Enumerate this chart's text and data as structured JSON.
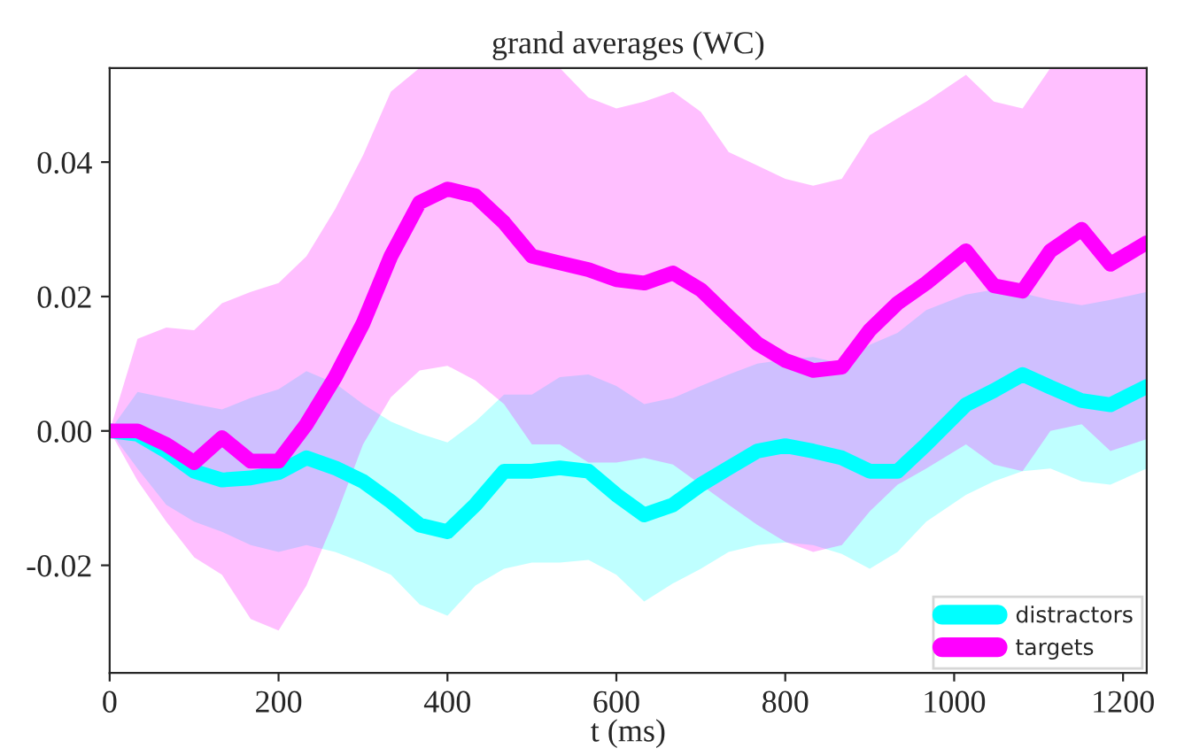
{
  "chart_data": {
    "type": "line",
    "title": "grand averages (WC)",
    "xlabel": "t (ms)",
    "x": [
      0,
      33,
      67,
      100,
      133,
      167,
      200,
      233,
      267,
      300,
      333,
      367,
      400,
      433,
      467,
      500,
      533,
      567,
      600,
      633,
      667,
      700,
      733,
      767,
      800,
      833,
      867,
      900,
      933,
      967,
      1014,
      1047,
      1081,
      1114,
      1151,
      1185,
      1228
    ],
    "series": [
      {
        "name": "distractors",
        "color": "#00ffff",
        "values": [
          0,
          -0.0005,
          -0.003,
          -0.006,
          -0.0073,
          -0.007,
          -0.0062,
          -0.004,
          -0.0055,
          -0.0075,
          -0.0105,
          -0.014,
          -0.015,
          -0.011,
          -0.006,
          -0.006,
          -0.0055,
          -0.006,
          -0.0095,
          -0.0125,
          -0.011,
          -0.008,
          -0.0055,
          -0.003,
          -0.0022,
          -0.003,
          -0.004,
          -0.006,
          -0.006,
          -0.002,
          0.0039,
          0.006,
          0.0084,
          0.0065,
          0.0045,
          0.0039,
          0.0066
        ],
        "lower": [
          0,
          -0.0056,
          -0.011,
          -0.0135,
          -0.015,
          -0.017,
          -0.018,
          -0.017,
          -0.018,
          -0.0196,
          -0.0214,
          -0.0258,
          -0.0275,
          -0.023,
          -0.0205,
          -0.0196,
          -0.0196,
          -0.0192,
          -0.0214,
          -0.0254,
          -0.0227,
          -0.0205,
          -0.018,
          -0.017,
          -0.0166,
          -0.017,
          -0.0183,
          -0.0205,
          -0.018,
          -0.0135,
          -0.0095,
          -0.0075,
          -0.006,
          -0.0056,
          -0.0075,
          -0.008,
          -0.0056
        ],
        "upper": [
          0,
          0.0058,
          0.0049,
          0.004,
          0.0032,
          0.0049,
          0.0062,
          0.0089,
          0.0071,
          0.004,
          0.0014,
          -0.0004,
          -0.0017,
          0.0014,
          0.0054,
          0.0054,
          0.008,
          0.0084,
          0.0067,
          0.004,
          0.0049,
          0.0067,
          0.0084,
          0.01,
          0.0106,
          0.011,
          0.01,
          0.0128,
          0.0146,
          0.018,
          0.0203,
          0.021,
          0.0205,
          0.0195,
          0.0187,
          0.0195,
          0.0207
        ]
      },
      {
        "name": "targets",
        "color": "#ff00ff",
        "values": [
          0,
          0,
          -0.002,
          -0.0047,
          -0.001,
          -0.0045,
          -0.0045,
          0.001,
          0.008,
          0.016,
          0.026,
          0.034,
          0.036,
          0.035,
          0.031,
          0.026,
          0.025,
          0.024,
          0.0225,
          0.022,
          0.0235,
          0.021,
          0.017,
          0.013,
          0.0105,
          0.009,
          0.0095,
          0.015,
          0.019,
          0.022,
          0.0268,
          0.0216,
          0.0208,
          0.0268,
          0.03,
          0.0248,
          0.028
        ],
        "lower": [
          0,
          -0.0074,
          -0.0135,
          -0.0188,
          -0.0214,
          -0.028,
          -0.0297,
          -0.023,
          -0.013,
          -0.002,
          0.005,
          0.009,
          0.0097,
          0.0075,
          0.004,
          -0.002,
          -0.002,
          -0.0047,
          -0.0047,
          -0.004,
          -0.005,
          -0.008,
          -0.011,
          -0.014,
          -0.0165,
          -0.018,
          -0.017,
          -0.012,
          -0.008,
          -0.0056,
          -0.002,
          -0.005,
          -0.006,
          0,
          0.001,
          -0.003,
          -0.0012
        ],
        "upper": [
          0,
          0.0137,
          0.0154,
          0.015,
          0.019,
          0.0207,
          0.022,
          0.026,
          0.033,
          0.041,
          0.0505,
          0.054,
          0.054,
          0.054,
          0.054,
          0.054,
          0.054,
          0.0496,
          0.048,
          0.049,
          0.0505,
          0.0475,
          0.0415,
          0.0395,
          0.0375,
          0.0365,
          0.0375,
          0.044,
          0.0465,
          0.049,
          0.053,
          0.049,
          0.048,
          0.054,
          0.054,
          0.054,
          0.054
        ]
      }
    ],
    "xlim": [
      0,
      1228
    ],
    "ylim": [
      -0.036,
      0.054
    ],
    "xticks": [
      0,
      200,
      400,
      600,
      800,
      1000,
      1200
    ],
    "yticks": [
      {
        "value": -0.02,
        "label": "-0.02"
      },
      {
        "value": 0,
        "label": "0.00"
      },
      {
        "value": 0.02,
        "label": "0.02"
      },
      {
        "value": 0.04,
        "label": "0.04"
      }
    ],
    "legend": "bottom right",
    "grid": false,
    "marker": "none",
    "line_style": "solid"
  }
}
